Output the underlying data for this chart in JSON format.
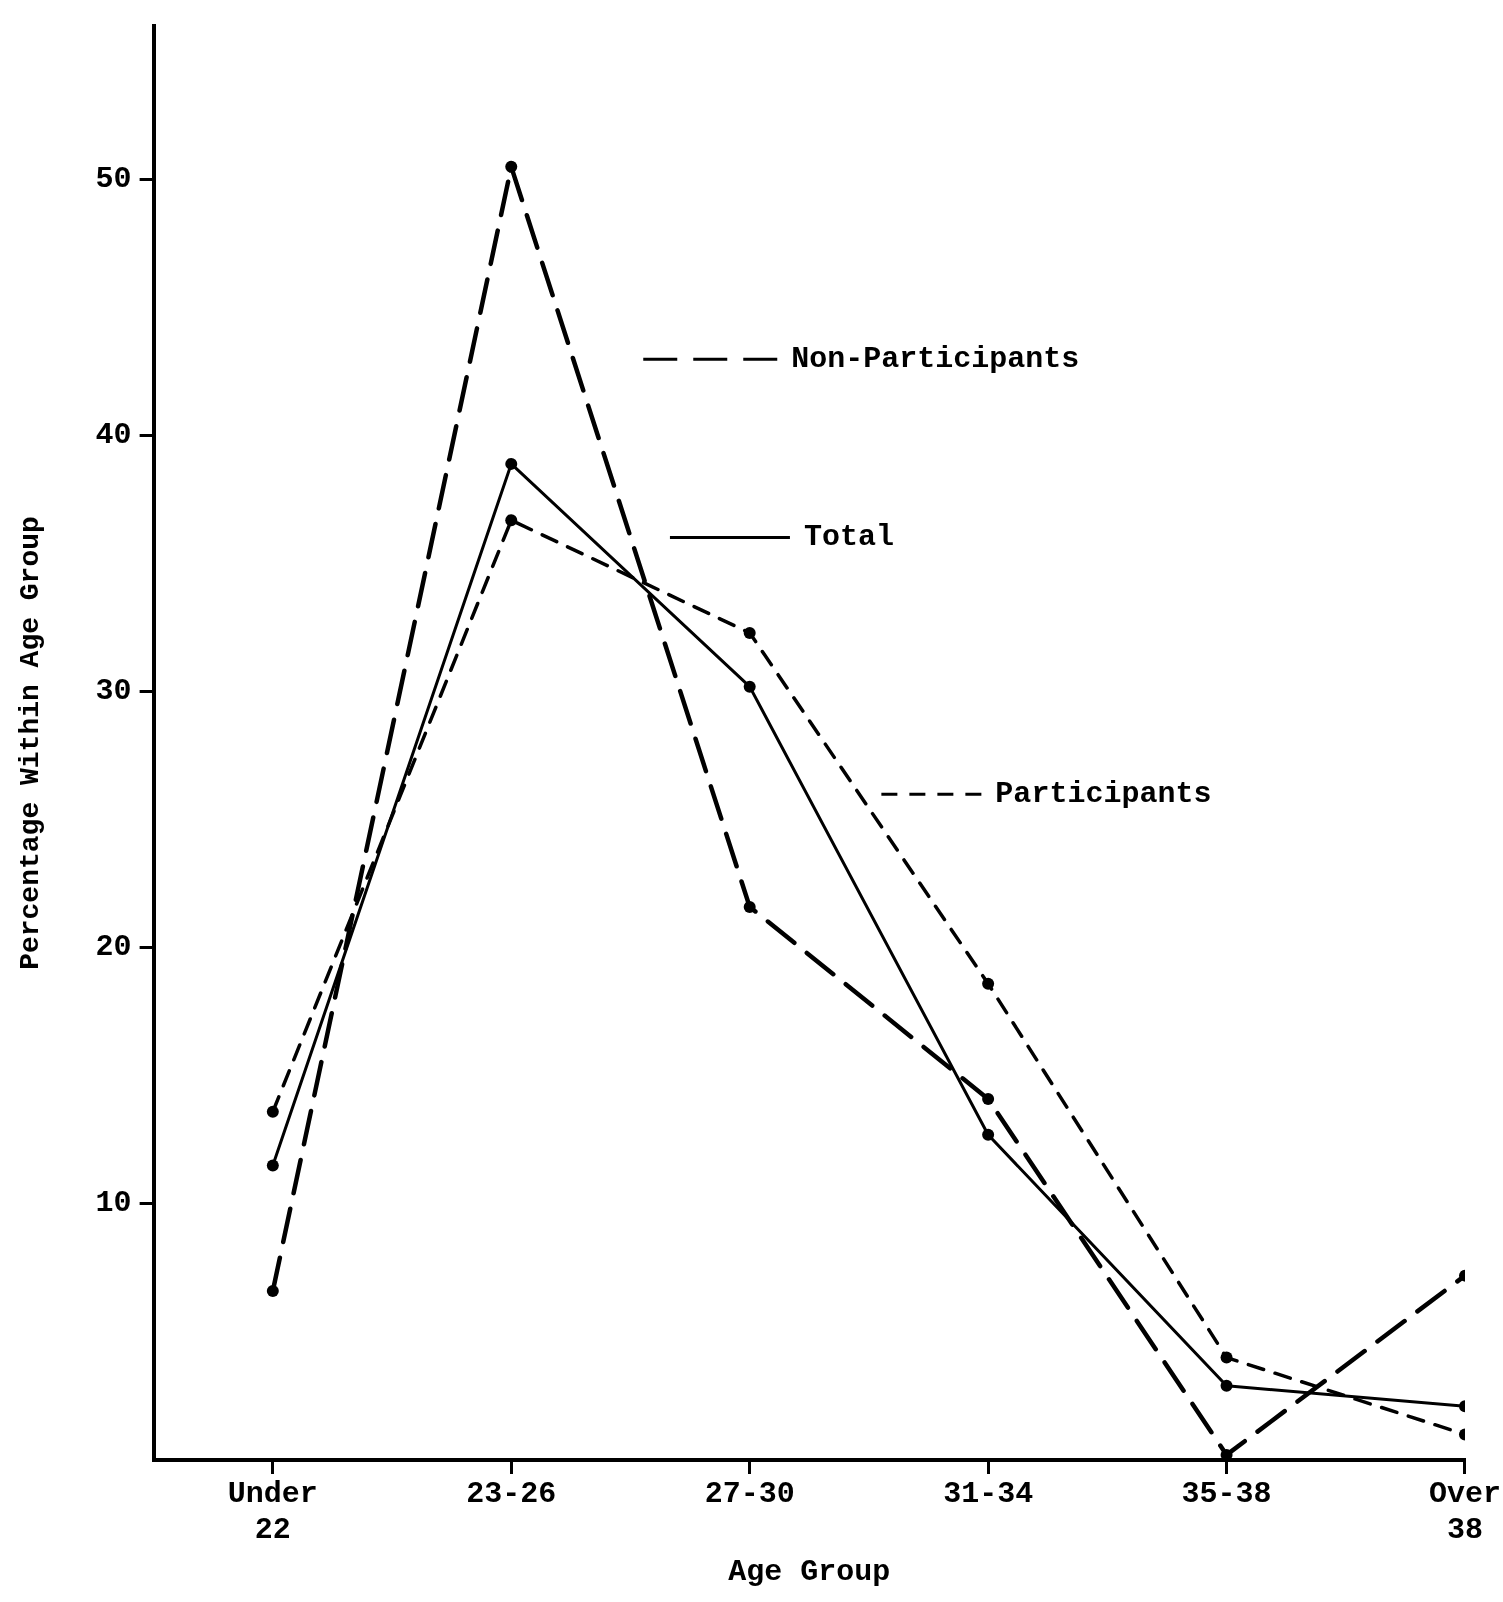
{
  "chart_data": {
    "type": "line",
    "xlabel": "Age Group",
    "ylabel": "Percentage Within Age Group",
    "categories": [
      "Under 22",
      "23-26",
      "27-30",
      "31-34",
      "35-38",
      "Over 38"
    ],
    "ylim": [
      0,
      56
    ],
    "yticks": [
      10,
      20,
      30,
      40,
      50
    ],
    "grid": false,
    "legend": "top right",
    "marker": "circle",
    "series": [
      {
        "name": "Non-Participants",
        "color": "#000000",
        "line_style": "dashed",
        "values": [
          6.6,
          50.5,
          21.6,
          14.1,
          0.2,
          7.2
        ]
      },
      {
        "name": "Total",
        "color": "#000000",
        "line_style": "solid",
        "values": [
          11.5,
          38.9,
          30.2,
          12.7,
          2.9,
          2.1
        ]
      },
      {
        "name": "Participants",
        "color": "#000000",
        "line_style": "dotted",
        "values": [
          13.6,
          36.7,
          32.3,
          18.6,
          4.0,
          1.0
        ]
      }
    ]
  }
}
